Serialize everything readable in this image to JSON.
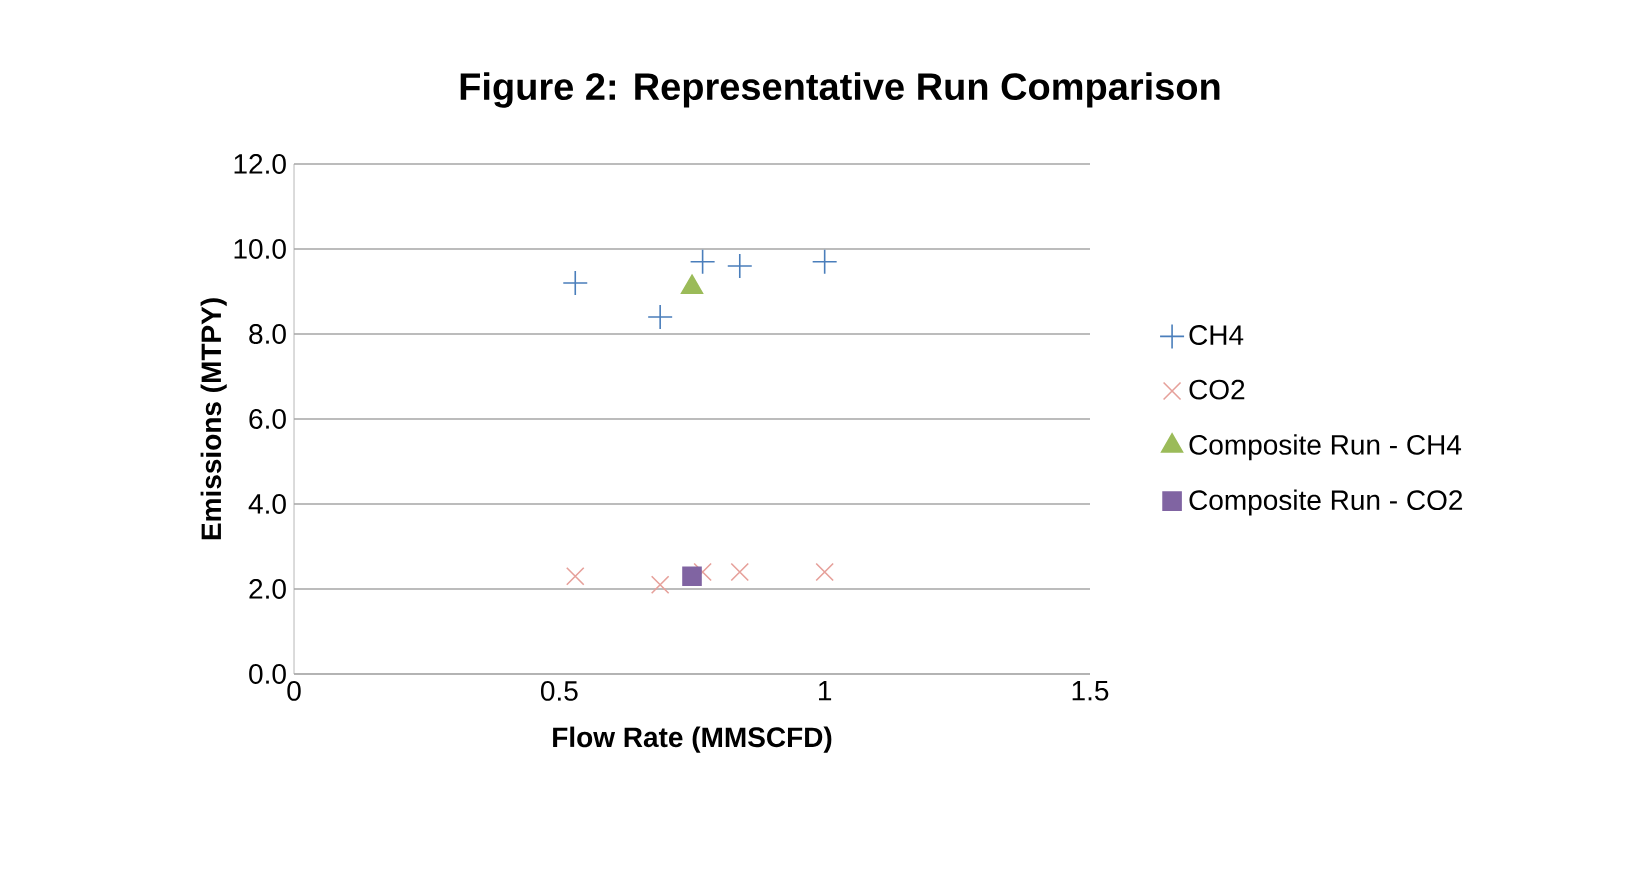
{
  "chart_data": {
    "type": "scatter",
    "title": "Figure 2: Representative Run Comparison",
    "xlabel": "Flow Rate (MMSCFD)",
    "ylabel": "Emissions (MTPY)",
    "series": [
      {
        "name": "CH4",
        "color": "#4a7ebb",
        "marker": "plus",
        "x": [
          0.53,
          0.69,
          0.77,
          0.84,
          1.0
        ],
        "values": [
          9.2,
          8.4,
          9.7,
          9.6,
          9.7
        ]
      },
      {
        "name": "CO2",
        "color": "#e6a09a",
        "marker": "cross",
        "x": [
          0.53,
          0.69,
          0.77,
          0.84,
          1.0
        ],
        "values": [
          2.3,
          2.1,
          2.4,
          2.4,
          2.4
        ]
      },
      {
        "name": "Composite Run - CH4",
        "color": "#9bbb59",
        "marker": "triangle",
        "x": [
          0.75
        ],
        "values": [
          9.1
        ]
      },
      {
        "name": "Composite Run - CO2",
        "color": "#8064a2",
        "marker": "square",
        "x": [
          0.75
        ],
        "values": [
          2.3
        ]
      }
    ],
    "xlim": [
      0,
      1.5
    ],
    "xticks": [
      0,
      0.5,
      1,
      1.5
    ],
    "ylim": [
      0,
      12
    ],
    "yticks": [
      {
        "value": 0,
        "label": "0.0"
      },
      {
        "value": 2,
        "label": "2.0"
      },
      {
        "value": 4,
        "label": "4.0"
      },
      {
        "value": 6,
        "label": "6.0"
      },
      {
        "value": 8,
        "label": "8.0"
      },
      {
        "value": 10,
        "label": "10.0"
      },
      {
        "value": 12,
        "label": "12.0"
      }
    ],
    "grid": "y",
    "legend": "right"
  }
}
